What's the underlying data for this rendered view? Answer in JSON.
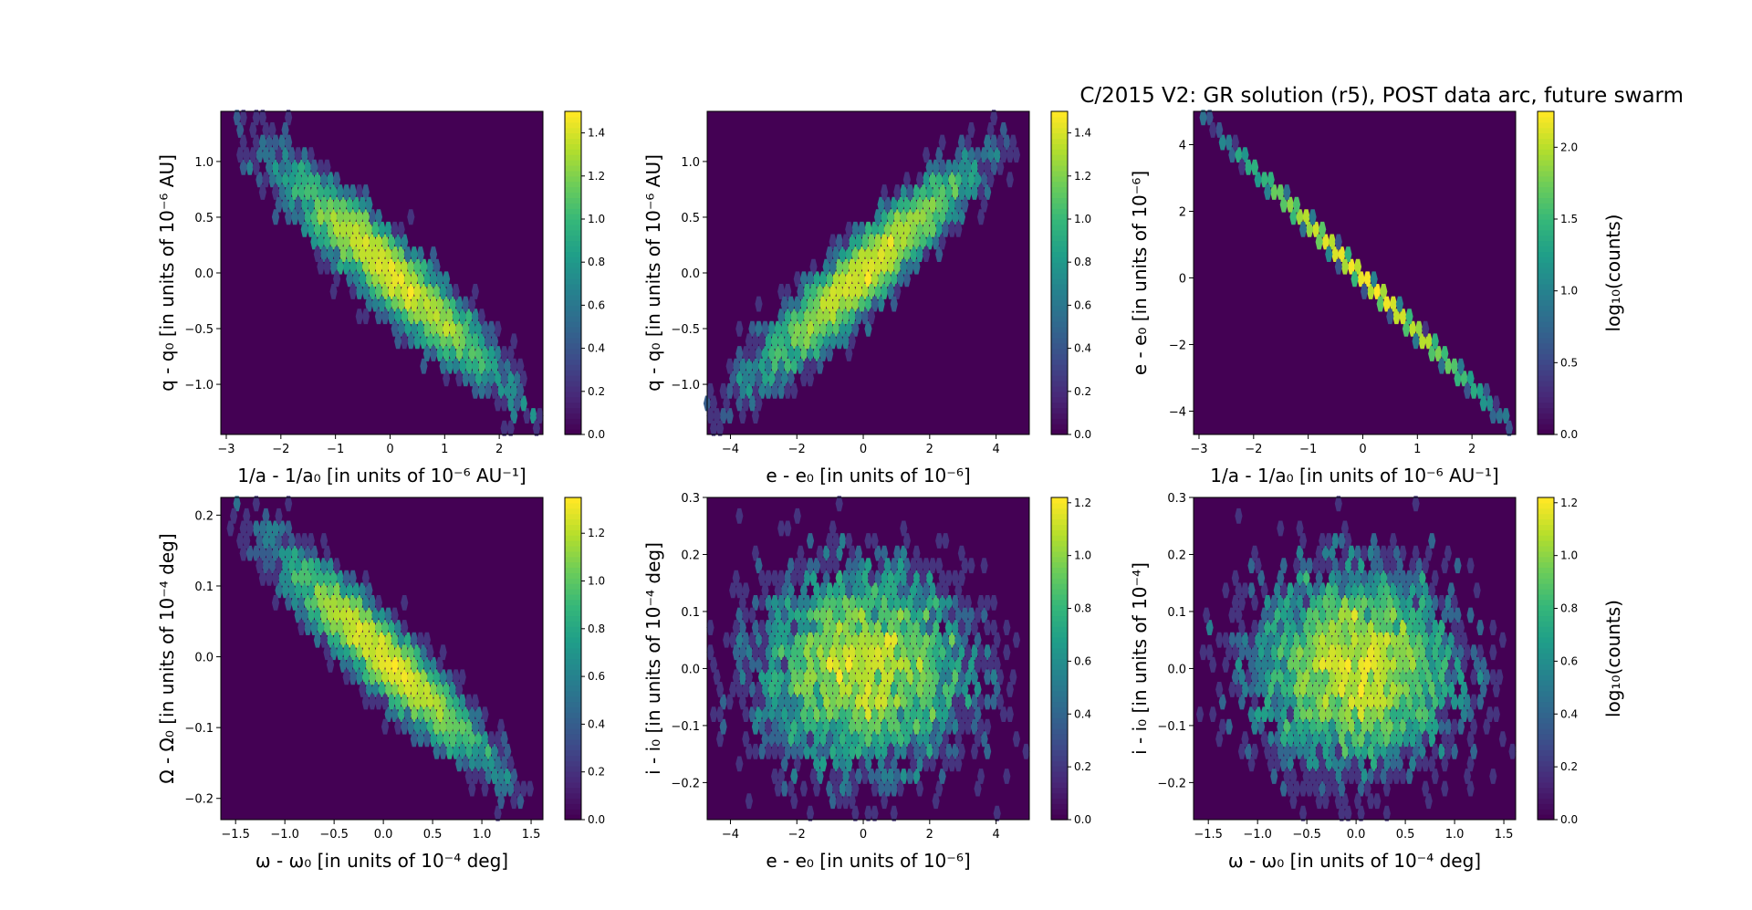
{
  "figure": {
    "title": "C/2015 V2: GR solution (r5), POST data arc,  future swarm"
  },
  "chart_data": [
    {
      "type": "heatmap",
      "subtype": "hexbin",
      "xlabel": "1/a - 1/a₀ [in units of 10⁻⁶ AU⁻¹]",
      "ylabel": "q - q₀ [in units of 10⁻⁶ AU]",
      "xlim": [
        -3.1,
        2.8
      ],
      "ylim": [
        -1.45,
        1.45
      ],
      "xticks": [
        -3,
        -2,
        -1,
        0,
        1,
        2
      ],
      "yticks": [
        -1.0,
        -0.5,
        0.0,
        0.5,
        1.0
      ],
      "ytick_labels": [
        "−1.0",
        "−0.5",
        "0.0",
        "0.5",
        "1.0"
      ],
      "xtick_labels": [
        "−3",
        "−2",
        "−1",
        "0",
        "1",
        "2"
      ],
      "distribution": {
        "center": [
          0,
          0
        ],
        "sx": 0.95,
        "sy": 0.46,
        "rho": -0.93,
        "n": 4000
      },
      "colorbar": {
        "label": "",
        "range": [
          0,
          1.5
        ],
        "ticks": [
          "0.0",
          "0.2",
          "0.4",
          "0.6",
          "0.8",
          "1.0",
          "1.2",
          "1.4"
        ],
        "tick_values": [
          0,
          0.2,
          0.4,
          0.6,
          0.8,
          1.0,
          1.2,
          1.4
        ]
      }
    },
    {
      "type": "heatmap",
      "subtype": "hexbin",
      "xlabel": "e - e₀ [in units of 10⁻⁶]",
      "ylabel": "q - q₀ [in units of 10⁻⁶ AU]",
      "xlim": [
        -4.7,
        5.0
      ],
      "ylim": [
        -1.45,
        1.45
      ],
      "xticks": [
        -4,
        -2,
        0,
        2,
        4
      ],
      "xtick_labels": [
        "−4",
        "−2",
        "0",
        "2",
        "4"
      ],
      "yticks": [
        -1.0,
        -0.5,
        0.0,
        0.5,
        1.0
      ],
      "ytick_labels": [
        "−1.0",
        "−0.5",
        "0.0",
        "0.5",
        "1.0"
      ],
      "distribution": {
        "center": [
          0,
          0
        ],
        "sx": 1.55,
        "sy": 0.46,
        "rho": 0.93,
        "n": 4000
      },
      "colorbar": {
        "label": "",
        "range": [
          0,
          1.5
        ],
        "ticks": [
          "0.0",
          "0.2",
          "0.4",
          "0.6",
          "0.8",
          "1.0",
          "1.2",
          "1.4"
        ],
        "tick_values": [
          0,
          0.2,
          0.4,
          0.6,
          0.8,
          1.0,
          1.2,
          1.4
        ]
      }
    },
    {
      "type": "heatmap",
      "subtype": "hexbin",
      "xlabel": "1/a - 1/a₀ [in units of 10⁻⁶ AU⁻¹]",
      "ylabel": "e - e₀ [in units of 10⁻⁶]",
      "xlim": [
        -3.1,
        2.8
      ],
      "ylim": [
        -4.7,
        5.0
      ],
      "xticks": [
        -3,
        -2,
        -1,
        0,
        1,
        2
      ],
      "xtick_labels": [
        "−3",
        "−2",
        "−1",
        "0",
        "1",
        "2"
      ],
      "yticks": [
        -4,
        -2,
        0,
        2,
        4
      ],
      "ytick_labels": [
        "−4",
        "−2",
        "0",
        "2",
        "4"
      ],
      "distribution": {
        "center": [
          0,
          0
        ],
        "sx": 0.95,
        "sy": 1.55,
        "rho": -0.9995,
        "n": 4000
      },
      "colorbar": {
        "label": "log₁₀(counts)",
        "range": [
          0,
          2.25
        ],
        "ticks": [
          "0.0",
          "0.5",
          "1.0",
          "1.5",
          "2.0"
        ],
        "tick_values": [
          0,
          0.5,
          1.0,
          1.5,
          2.0
        ]
      }
    },
    {
      "type": "heatmap",
      "subtype": "hexbin",
      "xlabel": "ω - ω₀ [in units of 10⁻⁴ deg]",
      "ylabel": "Ω - Ω₀ [in units of 10⁻⁴ deg]",
      "xlim": [
        -1.65,
        1.62
      ],
      "ylim": [
        -0.23,
        0.225
      ],
      "xticks": [
        -1.5,
        -1.0,
        -0.5,
        0.0,
        0.5,
        1.0,
        1.5
      ],
      "xtick_labels": [
        "−1.5",
        "−1.0",
        "−0.5",
        "0.0",
        "0.5",
        "1.0",
        "1.5"
      ],
      "yticks": [
        -0.2,
        -0.1,
        0.0,
        0.1,
        0.2
      ],
      "ytick_labels": [
        "−0.2",
        "−0.1",
        "0.0",
        "0.1",
        "0.2"
      ],
      "distribution": {
        "center": [
          0,
          0
        ],
        "sx": 0.5,
        "sy": 0.07,
        "rho": -0.93,
        "n": 4000
      },
      "colorbar": {
        "label": "",
        "range": [
          0,
          1.35
        ],
        "ticks": [
          "0.0",
          "0.2",
          "0.4",
          "0.6",
          "0.8",
          "1.0",
          "1.2"
        ],
        "tick_values": [
          0,
          0.2,
          0.4,
          0.6,
          0.8,
          1.0,
          1.2
        ]
      }
    },
    {
      "type": "heatmap",
      "subtype": "hexbin",
      "xlabel": "e - e₀ [in units of 10⁻⁶]",
      "ylabel": "i - i₀ [in units of 10⁻⁴ deg]",
      "xlim": [
        -4.7,
        5.0
      ],
      "ylim": [
        -0.265,
        0.3
      ],
      "xticks": [
        -4,
        -2,
        0,
        2,
        4
      ],
      "xtick_labels": [
        "−4",
        "−2",
        "0",
        "2",
        "4"
      ],
      "yticks": [
        -0.2,
        -0.1,
        0.0,
        0.1,
        0.2,
        0.3
      ],
      "ytick_labels": [
        "−0.2",
        "−0.1",
        "0.0",
        "0.1",
        "0.2",
        "0.3"
      ],
      "distribution": {
        "center": [
          0,
          0
        ],
        "sx": 1.55,
        "sy": 0.085,
        "rho": 0.0,
        "n": 4000
      },
      "colorbar": {
        "label": "",
        "range": [
          0,
          1.22
        ],
        "ticks": [
          "0.0",
          "0.2",
          "0.4",
          "0.6",
          "0.8",
          "1.0",
          "1.2"
        ],
        "tick_values": [
          0,
          0.2,
          0.4,
          0.6,
          0.8,
          1.0,
          1.2
        ]
      }
    },
    {
      "type": "heatmap",
      "subtype": "hexbin",
      "xlabel": "ω - ω₀ [in units of 10⁻⁴ deg]",
      "ylabel": "i - i₀ [in units of 10⁻⁴]",
      "xlim": [
        -1.65,
        1.62
      ],
      "ylim": [
        -0.265,
        0.3
      ],
      "xticks": [
        -1.5,
        -1.0,
        -0.5,
        0.0,
        0.5,
        1.0,
        1.5
      ],
      "xtick_labels": [
        "−1.5",
        "−1.0",
        "−0.5",
        "0.0",
        "0.5",
        "1.0",
        "1.5"
      ],
      "yticks": [
        -0.2,
        -0.1,
        0.0,
        0.1,
        0.2,
        0.3
      ],
      "ytick_labels": [
        "−0.2",
        "−0.1",
        "0.0",
        "0.1",
        "0.2",
        "0.3"
      ],
      "distribution": {
        "center": [
          0,
          0
        ],
        "sx": 0.5,
        "sy": 0.085,
        "rho": 0.0,
        "n": 4000
      },
      "colorbar": {
        "label": "log₁₀(counts)",
        "range": [
          0,
          1.22
        ],
        "ticks": [
          "0.0",
          "0.2",
          "0.4",
          "0.6",
          "0.8",
          "1.0",
          "1.2"
        ],
        "tick_values": [
          0,
          0.2,
          0.4,
          0.6,
          0.8,
          1.0,
          1.2
        ]
      }
    }
  ]
}
